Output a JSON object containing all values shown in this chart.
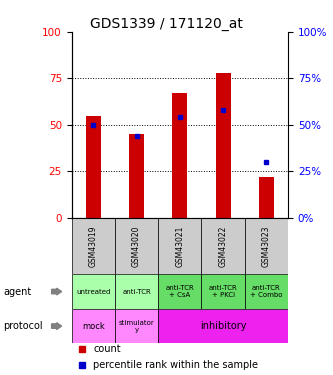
{
  "title": "GDS1339 / 171120_at",
  "samples": [
    "GSM43019",
    "GSM43020",
    "GSM43021",
    "GSM43022",
    "GSM43023"
  ],
  "count_values": [
    55,
    45,
    67,
    78,
    22
  ],
  "percentile_values": [
    50,
    44,
    54,
    58,
    30
  ],
  "agent_labels": [
    "untreated",
    "anti-TCR",
    "anti-TCR\n+ CsA",
    "anti-TCR\n+ PKCi",
    "anti-TCR\n+ Combo"
  ],
  "agent_color": "#aaffaa",
  "agent_color_dark": "#66dd66",
  "protocol_mock_color": "#ff88ff",
  "protocol_stim_color": "#ff88ff",
  "protocol_inhib_color": "#ee22ee",
  "bar_color": "#cc0000",
  "dot_color": "#0000cc",
  "ylim": [
    0,
    100
  ],
  "yticks": [
    0,
    25,
    50,
    75,
    100
  ],
  "sample_bg_color": "#cccccc",
  "title_fontsize": 10,
  "bar_width": 0.35
}
